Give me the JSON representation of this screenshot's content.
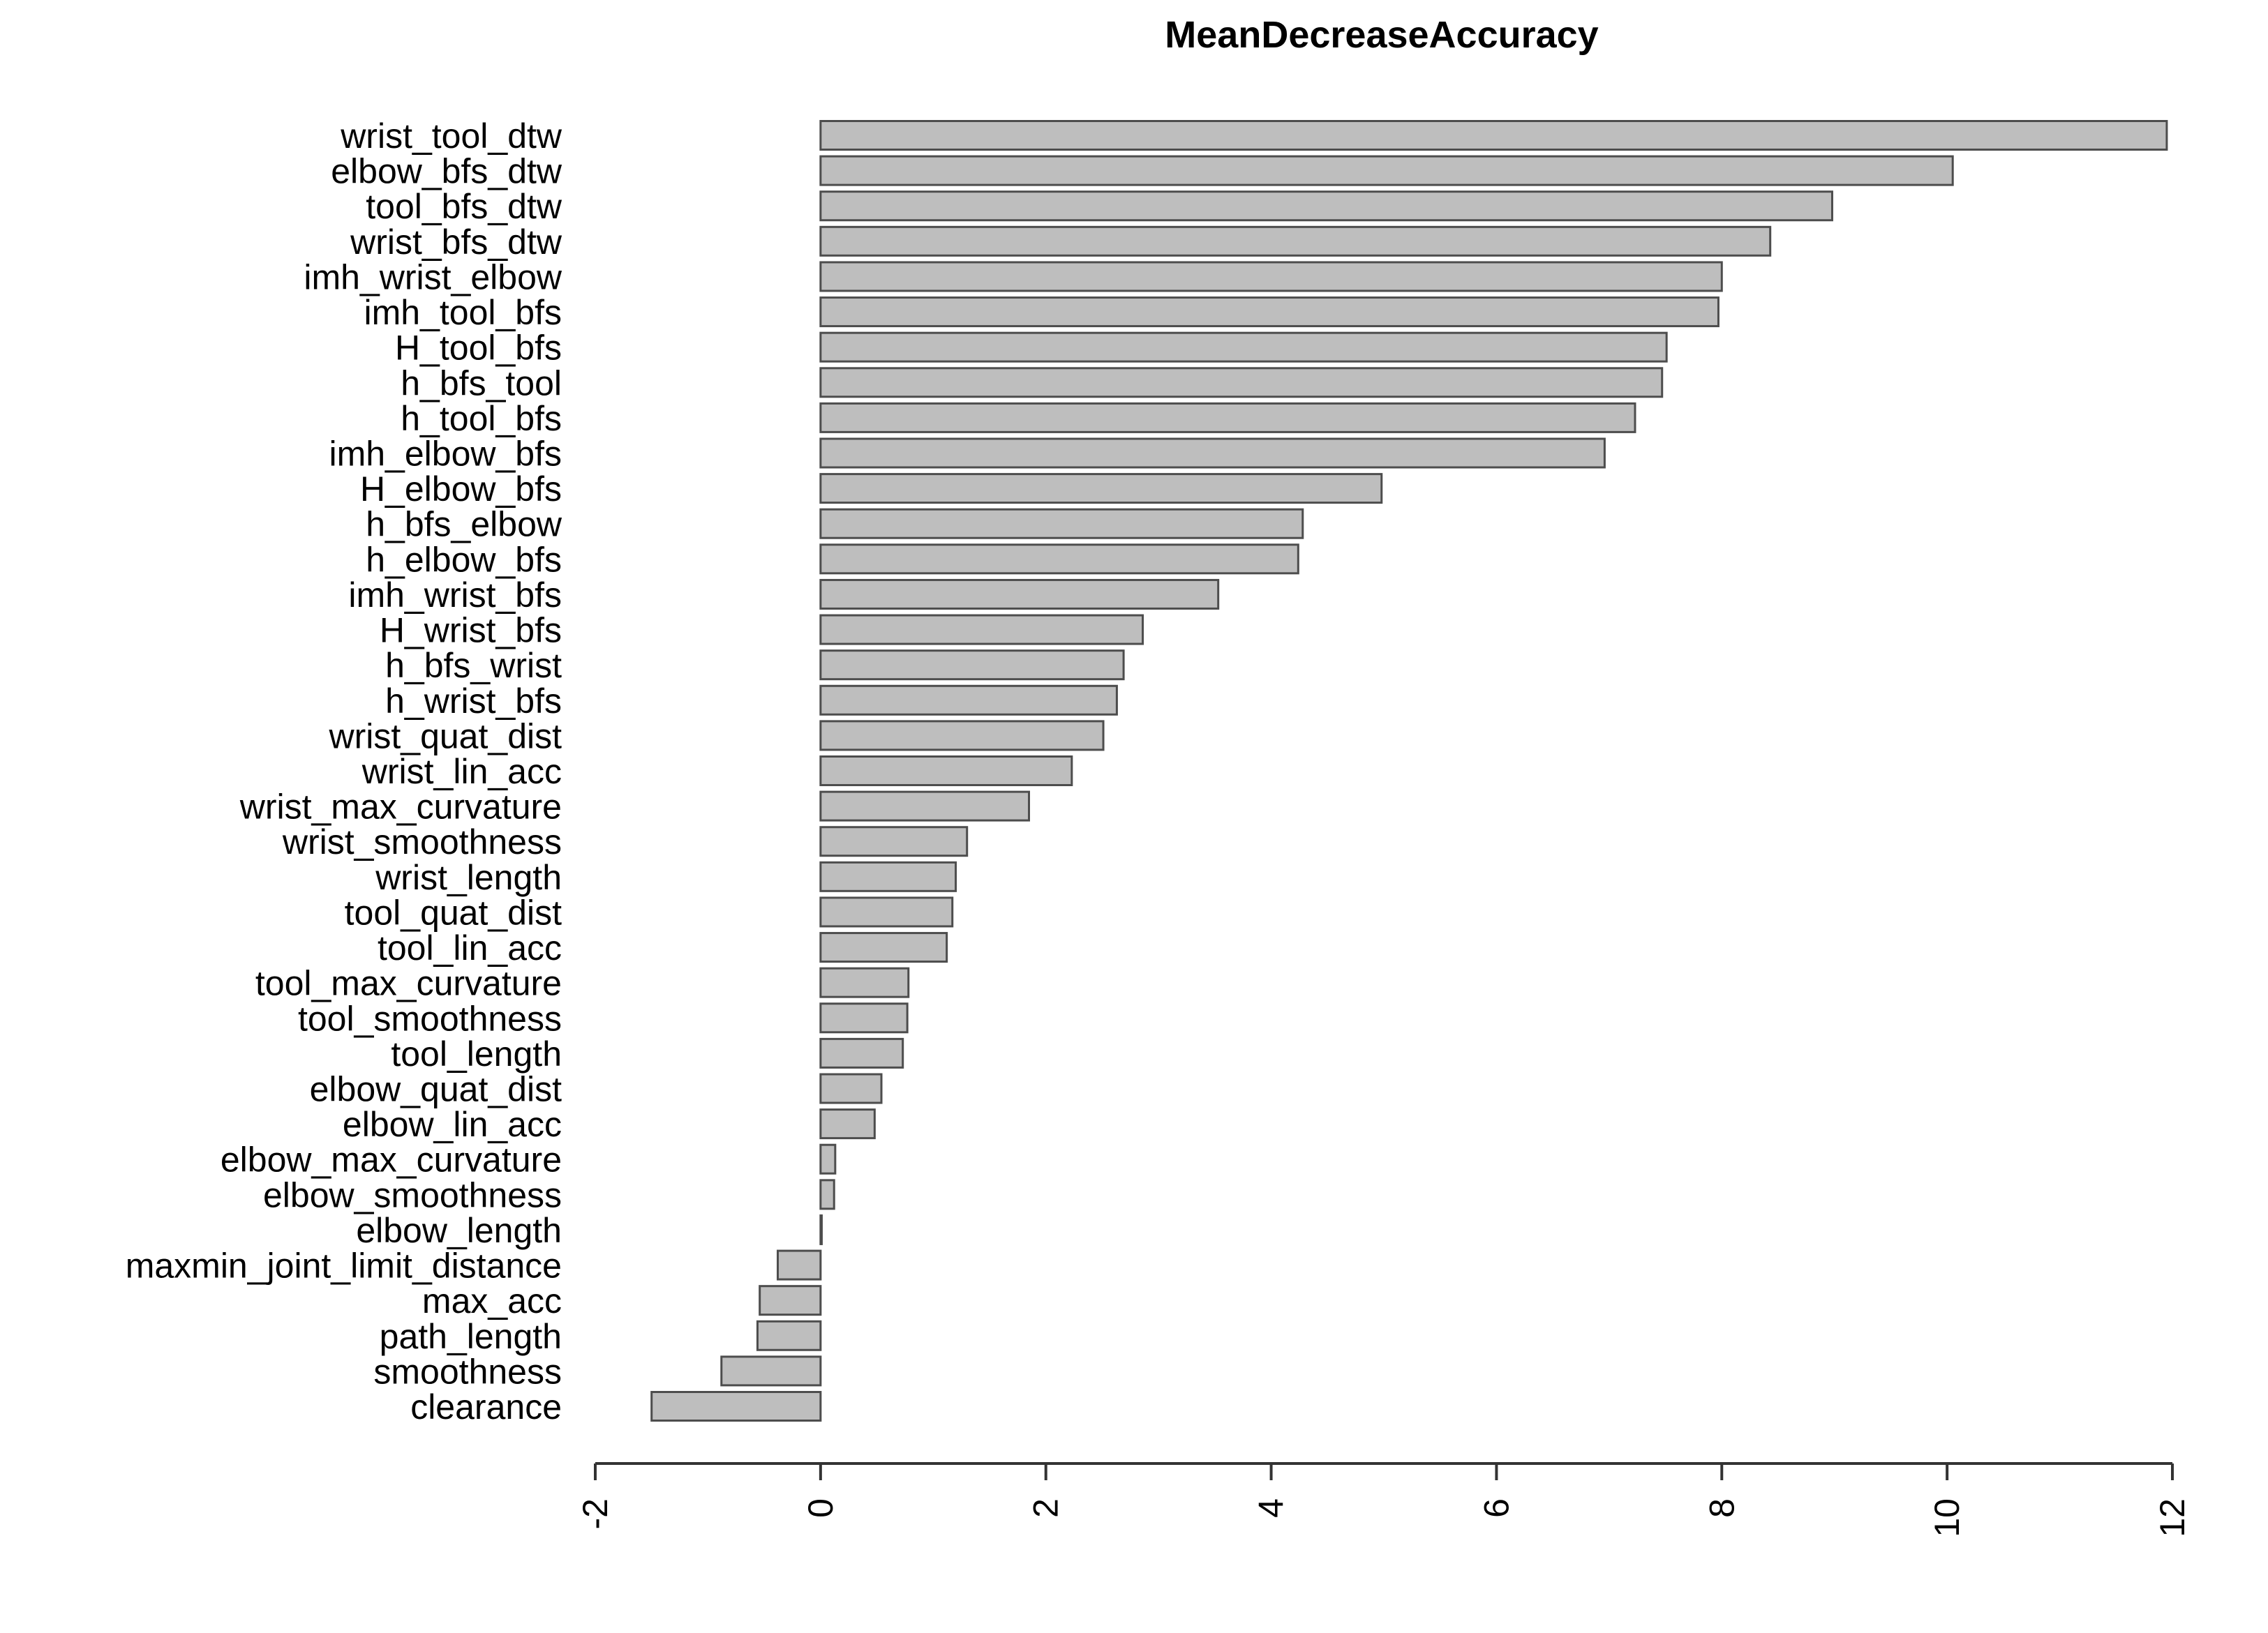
{
  "chart_data": {
    "type": "bar",
    "orientation": "horizontal",
    "title": "MeanDecreaseAccuracy",
    "xlabel": "",
    "ylabel": "",
    "xlim": [
      -2,
      12
    ],
    "x_ticks": [
      "-2",
      "0",
      "2",
      "4",
      "6",
      "8",
      "10",
      "12"
    ],
    "grid": false,
    "bar_color": "#bebebe",
    "bar_edge_color": "#4d4d4d",
    "categories": [
      "wrist_tool_dtw",
      "elbow_bfs_dtw",
      "tool_bfs_dtw",
      "wrist_bfs_dtw",
      "imh_wrist_elbow",
      "imh_tool_bfs",
      "H_tool_bfs",
      "h_bfs_tool",
      "h_tool_bfs",
      "imh_elbow_bfs",
      "H_elbow_bfs",
      "h_bfs_elbow",
      "h_elbow_bfs",
      "imh_wrist_bfs",
      "H_wrist_bfs",
      "h_bfs_wrist",
      "h_wrist_bfs",
      "wrist_quat_dist",
      "wrist_lin_acc",
      "wrist_max_curvature",
      "wrist_smoothness",
      "wrist_length",
      "tool_quat_dist",
      "tool_lin_acc",
      "tool_max_curvature",
      "tool_smoothness",
      "tool_length",
      "elbow_quat_dist",
      "elbow_lin_acc",
      "elbow_max_curvature",
      "elbow_smoothness",
      "elbow_length",
      "maxmin_joint_limit_distance",
      "max_acc",
      "path_length",
      "smoothness",
      "clearance"
    ],
    "values": [
      11.95,
      10.05,
      8.98,
      8.43,
      8.0,
      7.97,
      7.51,
      7.47,
      7.23,
      6.96,
      4.98,
      4.28,
      4.24,
      3.53,
      2.86,
      2.69,
      2.63,
      2.51,
      2.23,
      1.85,
      1.3,
      1.2,
      1.17,
      1.12,
      0.78,
      0.77,
      0.73,
      0.54,
      0.48,
      0.13,
      0.12,
      0.01,
      -0.38,
      -0.54,
      -0.56,
      -0.88,
      -1.5
    ]
  }
}
